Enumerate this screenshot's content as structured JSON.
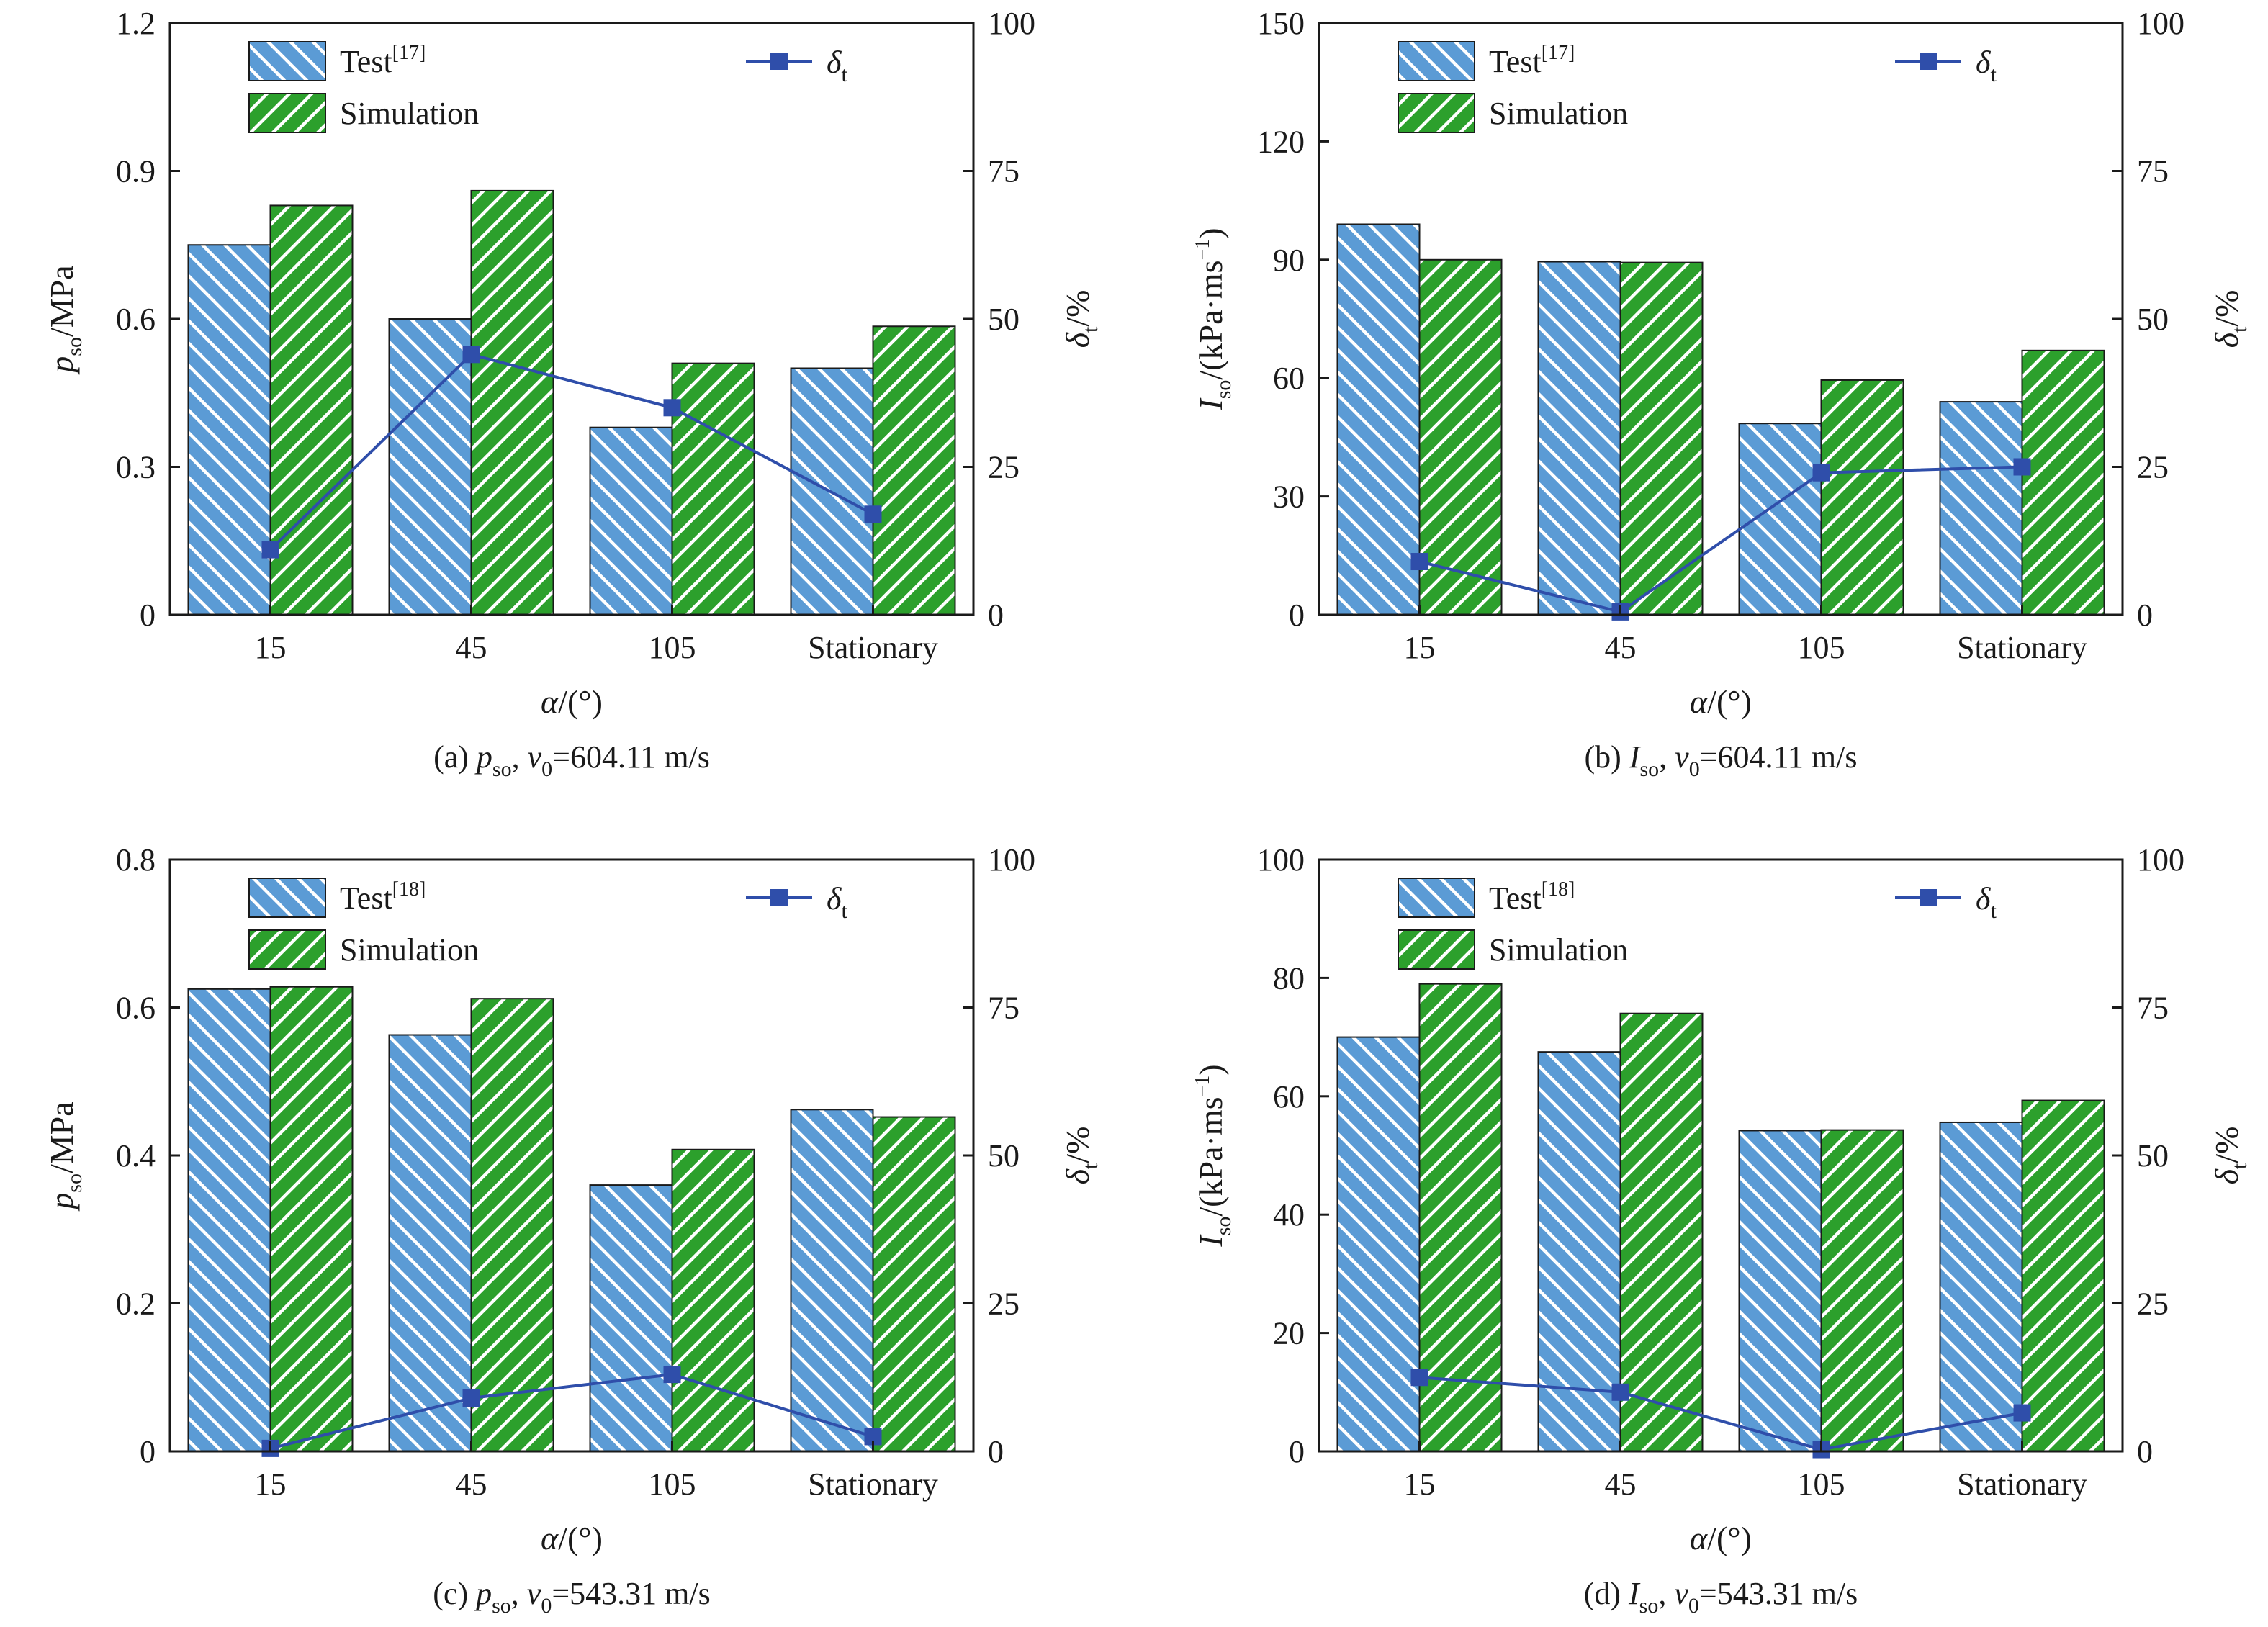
{
  "colors": {
    "test": "#5b9bd5",
    "simulation": "#2ca02c",
    "line": "#2f4eaa",
    "axis": "#1a1a1a"
  },
  "legend": {
    "delta": "δ",
    "delta_sub": "t"
  },
  "axes": {
    "x_label_symbol": "α",
    "x_label_unit": "/(°)",
    "right_label_symbol": "δ",
    "right_label_sub": "t",
    "right_label_unit": "/%"
  },
  "chart_data": [
    {
      "type": "bar",
      "panel": "a",
      "caption": {
        "prefix": "(a) ",
        "sym": "p",
        "sub": "so",
        "mid": ", ",
        "vsym": "v",
        "vsub": "0",
        "suffix": "=604.11 m/s"
      },
      "categories": [
        "15",
        "45",
        "105",
        "Stationary"
      ],
      "ylabel": {
        "sym": "p",
        "sub": "so",
        "unit": "/MPa"
      },
      "ylim": [
        0,
        1.2
      ],
      "yticks": [
        "0",
        "0.3",
        "0.6",
        "0.9",
        "1.2"
      ],
      "y2lim": [
        0,
        100
      ],
      "y2ticks": [
        "0",
        "25",
        "50",
        "75",
        "100"
      ],
      "series": [
        {
          "name": "Test",
          "ref": "[17]",
          "values": [
            0.75,
            0.6,
            0.38,
            0.5
          ]
        },
        {
          "name": "Simulation",
          "values": [
            0.83,
            0.86,
            0.51,
            0.585
          ]
        }
      ],
      "line": {
        "name": "δt",
        "values": [
          11,
          44,
          35,
          17
        ]
      }
    },
    {
      "type": "bar",
      "panel": "b",
      "caption": {
        "prefix": "(b) ",
        "sym": "I",
        "sub": "so",
        "mid": ", ",
        "vsym": "v",
        "vsub": "0",
        "suffix": "=604.11 m/s"
      },
      "categories": [
        "15",
        "45",
        "105",
        "Stationary"
      ],
      "ylabel": {
        "sym": "I",
        "sub": "so",
        "unit": "/(kPa·ms",
        "sup": "−1",
        "tail": ")"
      },
      "ylim": [
        0,
        150
      ],
      "yticks": [
        "0",
        "30",
        "60",
        "90",
        "120",
        "150"
      ],
      "y2lim": [
        0,
        100
      ],
      "y2ticks": [
        "0",
        "25",
        "50",
        "75",
        "100"
      ],
      "series": [
        {
          "name": "Test",
          "ref": "[17]",
          "values": [
            99,
            89.5,
            48.5,
            54
          ]
        },
        {
          "name": "Simulation",
          "values": [
            90,
            89.3,
            59.5,
            67
          ]
        }
      ],
      "line": {
        "name": "δt",
        "values": [
          9,
          0.5,
          24,
          25
        ]
      }
    },
    {
      "type": "bar",
      "panel": "c",
      "caption": {
        "prefix": "(c) ",
        "sym": "p",
        "sub": "so",
        "mid": ", ",
        "vsym": "v",
        "vsub": "0",
        "suffix": "=543.31 m/s"
      },
      "categories": [
        "15",
        "45",
        "105",
        "Stationary"
      ],
      "ylabel": {
        "sym": "p",
        "sub": "so",
        "unit": "/MPa"
      },
      "ylim": [
        0,
        0.8
      ],
      "yticks": [
        "0",
        "0.2",
        "0.4",
        "0.6",
        "0.8"
      ],
      "y2lim": [
        0,
        100
      ],
      "y2ticks": [
        "0",
        "25",
        "50",
        "75",
        "100"
      ],
      "series": [
        {
          "name": "Test",
          "ref": "[18]",
          "values": [
            0.625,
            0.563,
            0.36,
            0.462
          ]
        },
        {
          "name": "Simulation",
          "values": [
            0.628,
            0.612,
            0.408,
            0.452
          ]
        }
      ],
      "line": {
        "name": "δt",
        "values": [
          0.5,
          9,
          13,
          2.5
        ]
      }
    },
    {
      "type": "bar",
      "panel": "d",
      "caption": {
        "prefix": "(d) ",
        "sym": "I",
        "sub": "so",
        "mid": ", ",
        "vsym": "v",
        "vsub": "0",
        "suffix": "=543.31 m/s"
      },
      "categories": [
        "15",
        "45",
        "105",
        "Stationary"
      ],
      "ylabel": {
        "sym": "I",
        "sub": "so",
        "unit": "/(kPa·ms",
        "sup": "−1",
        "tail": ")"
      },
      "ylim": [
        0,
        100
      ],
      "yticks": [
        "0",
        "20",
        "40",
        "60",
        "80",
        "100"
      ],
      "y2lim": [
        0,
        100
      ],
      "y2ticks": [
        "0",
        "25",
        "50",
        "75",
        "100"
      ],
      "series": [
        {
          "name": "Test",
          "ref": "[18]",
          "values": [
            70,
            67.5,
            54.2,
            55.6
          ]
        },
        {
          "name": "Simulation",
          "values": [
            79,
            74,
            54.3,
            59.3
          ]
        }
      ],
      "line": {
        "name": "δt",
        "values": [
          12.5,
          10,
          0.3,
          6.5
        ]
      }
    }
  ]
}
